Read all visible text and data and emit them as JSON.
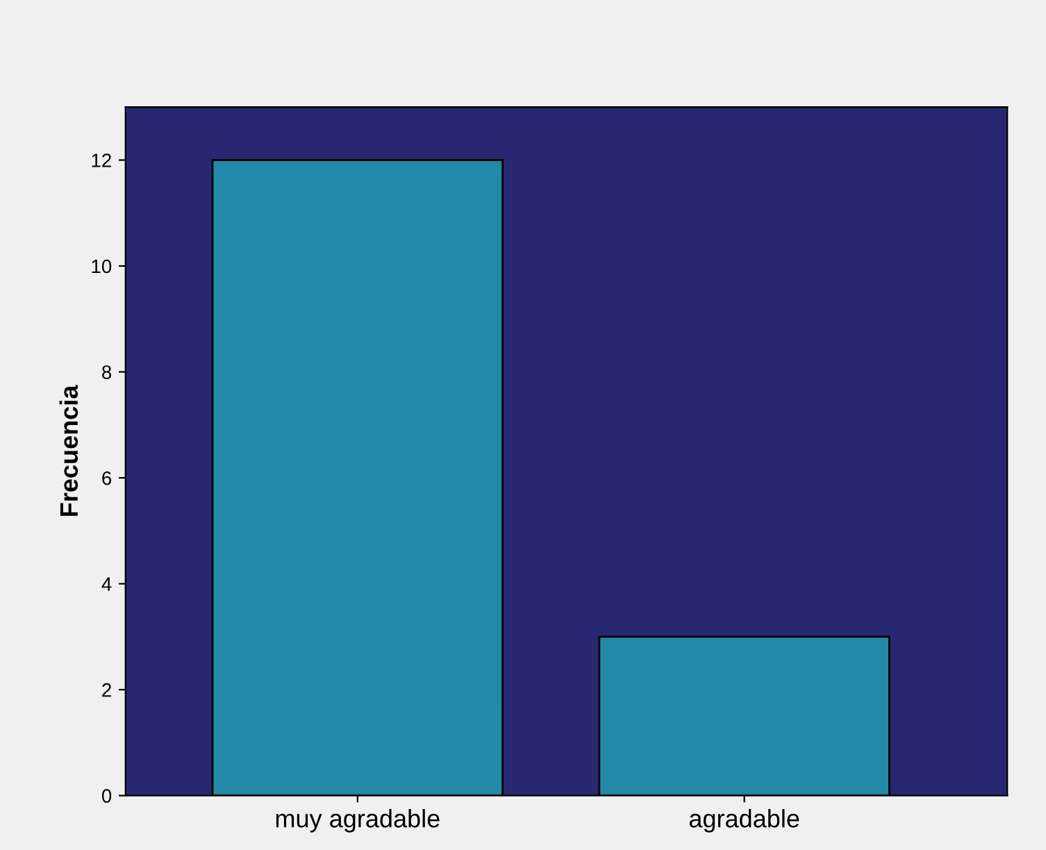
{
  "chart_data": {
    "type": "bar",
    "ylabel": "Frecuencia",
    "categories": [
      "muy agradable",
      "agradable"
    ],
    "values": [
      12,
      3
    ],
    "color": "#2389a8",
    "ylim": [
      0,
      13
    ],
    "yticks": [
      0,
      2,
      4,
      6,
      8,
      10,
      12
    ],
    "grid": false,
    "legend": false
  }
}
